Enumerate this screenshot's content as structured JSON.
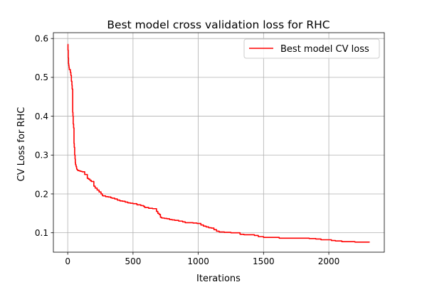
{
  "chart_data": {
    "type": "line",
    "title": "Best model cross validation loss for RHC",
    "xlabel": "Iterations",
    "ylabel": "CV Loss for RHC",
    "xlim": [
      -110,
      2425
    ],
    "ylim": [
      0.05,
      0.615
    ],
    "xticks": [
      0,
      500,
      1000,
      1500,
      2000
    ],
    "yticks": [
      0.1,
      0.2,
      0.3,
      0.4,
      0.5,
      0.6
    ],
    "grid": true,
    "legend_position": "top-right",
    "series": [
      {
        "name": "Best model CV loss",
        "color": "#ff0000",
        "x": [
          0,
          2,
          4,
          6,
          8,
          10,
          12,
          16,
          20,
          24,
          28,
          32,
          34,
          38,
          40,
          42,
          45,
          48,
          50,
          53,
          56,
          58,
          60,
          64,
          68,
          70,
          75,
          80,
          85,
          90,
          100,
          110,
          130,
          150,
          160,
          170,
          180,
          200,
          210,
          225,
          240,
          255,
          265,
          270,
          290,
          310,
          330,
          340,
          360,
          380,
          400,
          420,
          440,
          460,
          480,
          500,
          530,
          560,
          580,
          590,
          620,
          650,
          680,
          690,
          700,
          710,
          720,
          740,
          760,
          780,
          800,
          820,
          850,
          880,
          900,
          930,
          960,
          990,
          1010,
          1020,
          1040,
          1060,
          1080,
          1100,
          1120,
          1140,
          1160,
          1200,
          1250,
          1300,
          1320,
          1350,
          1400,
          1430,
          1460,
          1500,
          1550,
          1580,
          1620,
          1700,
          1800,
          1850,
          1870,
          1900,
          1940,
          1980,
          2020,
          2050,
          2100,
          2150,
          2200,
          2310
        ],
        "y": [
          0.585,
          0.57,
          0.55,
          0.535,
          0.53,
          0.525,
          0.52,
          0.52,
          0.513,
          0.505,
          0.49,
          0.48,
          0.47,
          0.41,
          0.4,
          0.38,
          0.37,
          0.33,
          0.32,
          0.3,
          0.29,
          0.28,
          0.275,
          0.27,
          0.265,
          0.263,
          0.261,
          0.26,
          0.26,
          0.259,
          0.258,
          0.257,
          0.25,
          0.24,
          0.238,
          0.235,
          0.232,
          0.22,
          0.215,
          0.21,
          0.205,
          0.2,
          0.196,
          0.195,
          0.193,
          0.192,
          0.19,
          0.189,
          0.187,
          0.184,
          0.182,
          0.181,
          0.179,
          0.177,
          0.176,
          0.175,
          0.172,
          0.17,
          0.168,
          0.165,
          0.163,
          0.162,
          0.155,
          0.15,
          0.147,
          0.14,
          0.138,
          0.137,
          0.136,
          0.134,
          0.133,
          0.132,
          0.13,
          0.128,
          0.126,
          0.126,
          0.125,
          0.124,
          0.124,
          0.12,
          0.117,
          0.115,
          0.113,
          0.112,
          0.108,
          0.104,
          0.102,
          0.101,
          0.1,
          0.1,
          0.096,
          0.095,
          0.095,
          0.093,
          0.09,
          0.088,
          0.088,
          0.088,
          0.086,
          0.086,
          0.086,
          0.085,
          0.085,
          0.084,
          0.082,
          0.082,
          0.08,
          0.079,
          0.077,
          0.077,
          0.076,
          0.075
        ]
      }
    ]
  }
}
